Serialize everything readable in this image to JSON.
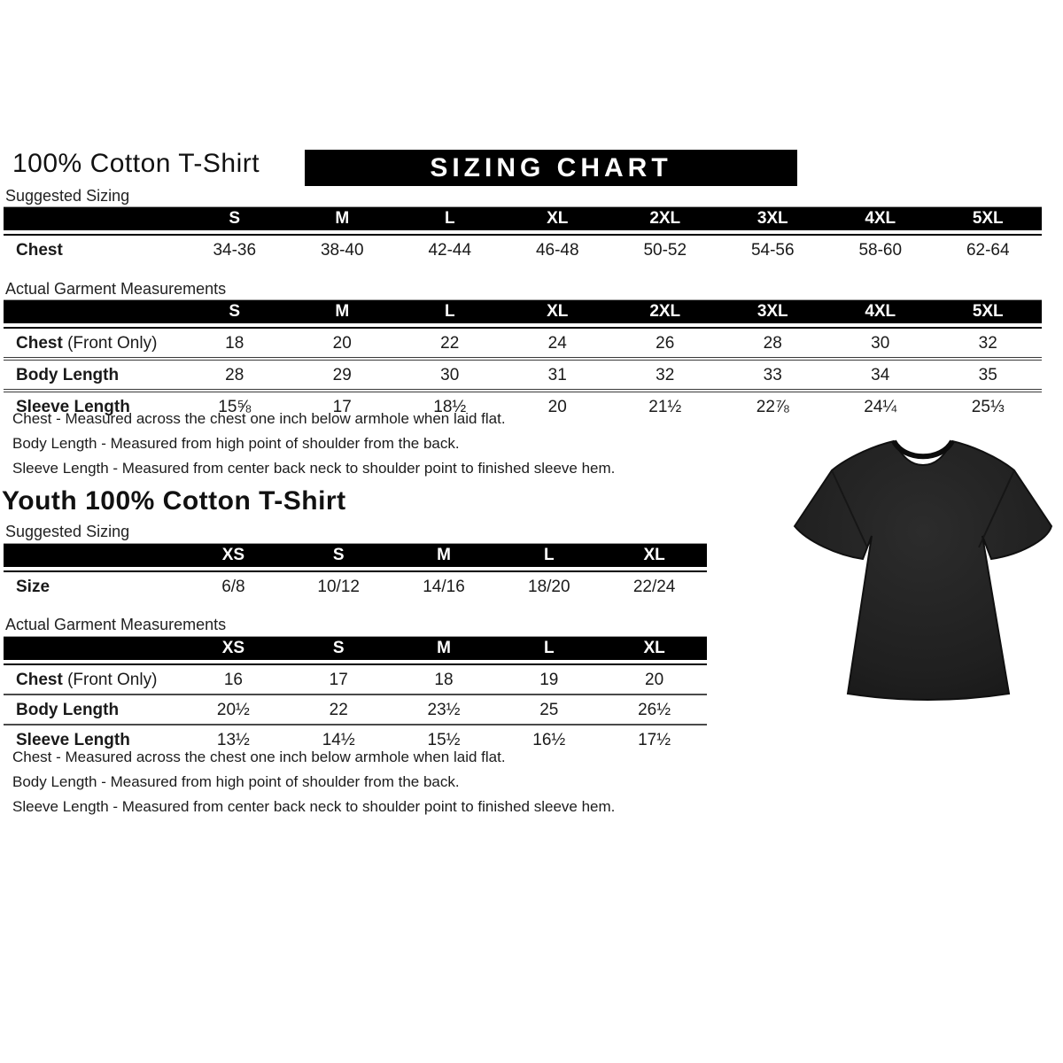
{
  "header": {
    "title": "100% Cotton T-Shirt",
    "banner": "SIZING CHART"
  },
  "colors": {
    "bar_background": "#000000",
    "bar_text": "#ffffff",
    "body_text": "#1a1a1a",
    "shirt_color": "#1f1f1f"
  },
  "adult": {
    "suggested": {
      "label": "Suggested Sizing",
      "columns": [
        "S",
        "M",
        "L",
        "XL",
        "2XL",
        "3XL",
        "4XL",
        "5XL"
      ],
      "rows": [
        {
          "label": "Chest",
          "suffix": "",
          "values": [
            "34-36",
            "38-40",
            "42-44",
            "46-48",
            "50-52",
            "54-56",
            "58-60",
            "62-64"
          ]
        }
      ]
    },
    "actual": {
      "label": "Actual Garment Measurements",
      "columns": [
        "S",
        "M",
        "L",
        "XL",
        "2XL",
        "3XL",
        "4XL",
        "5XL"
      ],
      "rows": [
        {
          "label": "Chest",
          "suffix": " (Front Only)",
          "values": [
            "18",
            "20",
            "22",
            "24",
            "26",
            "28",
            "30",
            "32"
          ]
        },
        {
          "label": "Body Length",
          "suffix": "",
          "values": [
            "28",
            "29",
            "30",
            "31",
            "32",
            "33",
            "34",
            "35"
          ]
        },
        {
          "label": "Sleeve Length",
          "suffix": "",
          "values": [
            "15⅝",
            "17",
            "18½",
            "20",
            "21½",
            "22⅞",
            "24¼",
            "25⅓"
          ]
        }
      ]
    },
    "notes": [
      "Chest - Measured across the chest one inch below armhole when laid flat.",
      "Body Length - Measured from high point of shoulder from the back.",
      "Sleeve Length - Measured from center back neck to shoulder point to finished sleeve hem."
    ]
  },
  "youth": {
    "title": "Youth 100% Cotton T-Shirt",
    "suggested": {
      "label": "Suggested Sizing",
      "columns": [
        "XS",
        "S",
        "M",
        "L",
        "XL"
      ],
      "rows": [
        {
          "label": "Size",
          "suffix": "",
          "values": [
            "6/8",
            "10/12",
            "14/16",
            "18/20",
            "22/24"
          ]
        }
      ]
    },
    "actual": {
      "label": "Actual Garment Measurements",
      "columns": [
        "XS",
        "S",
        "M",
        "L",
        "XL"
      ],
      "rows": [
        {
          "label": "Chest",
          "suffix": " (Front Only)",
          "values": [
            "16",
            "17",
            "18",
            "19",
            "20"
          ]
        },
        {
          "label": "Body Length",
          "suffix": "",
          "values": [
            "20½",
            "22",
            "23½",
            "25",
            "26½"
          ]
        },
        {
          "label": "Sleeve Length",
          "suffix": "",
          "values": [
            "13½",
            "14½",
            "15½",
            "16½",
            "17½"
          ]
        }
      ]
    },
    "notes": [
      "Chest - Measured across the chest one inch below armhole when laid flat.",
      "Body Length - Measured from high point of shoulder from the back.",
      "Sleeve Length - Measured from center back neck to shoulder point to finished sleeve hem."
    ]
  },
  "tshirt_image": {
    "name": "black-tshirt-photo",
    "color": "#1f1f1f"
  }
}
